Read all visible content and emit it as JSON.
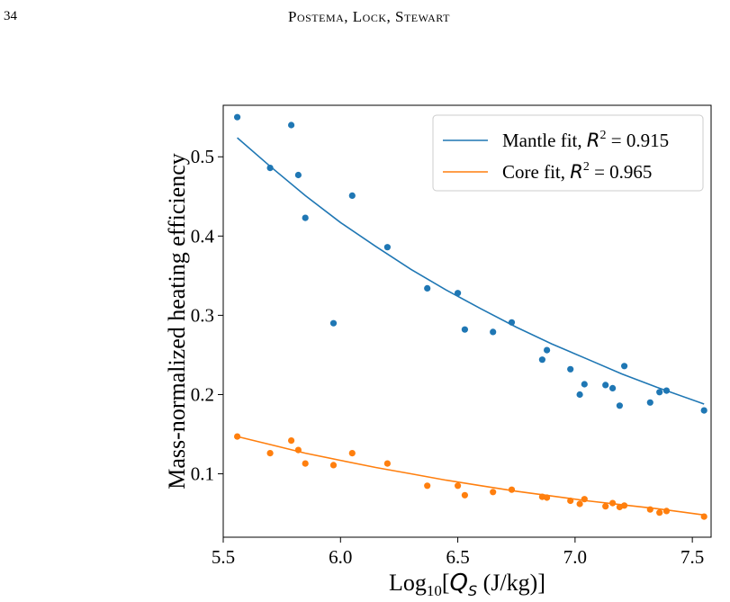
{
  "page": {
    "page_number": "34",
    "running_head": "Postema, Lock, Stewart"
  },
  "chart_data": {
    "type": "scatter",
    "xlabel": "Log10[QS (J/kg)]",
    "xlabel_parts": {
      "prefix": "Log",
      "sub": "10",
      "bracket_open": "[",
      "var": "Q",
      "var_sub": "S",
      "unit": " (J/kg)]"
    },
    "ylabel": "Mass-normalized heating efficiency",
    "xlim": [
      5.5,
      7.58
    ],
    "ylim": [
      0.02,
      0.565
    ],
    "xticks": [
      5.5,
      6.0,
      6.5,
      7.0,
      7.5
    ],
    "xtick_labels": [
      "5.5",
      "6.0",
      "6.5",
      "7.0",
      "7.5"
    ],
    "yticks": [
      0.1,
      0.2,
      0.3,
      0.4,
      0.5
    ],
    "ytick_labels": [
      "0.1",
      "0.2",
      "0.3",
      "0.4",
      "0.5"
    ],
    "legend_position": "top-right",
    "series": [
      {
        "name": "Mantle",
        "color": "#1f77b4",
        "x": [
          5.56,
          5.7,
          5.79,
          5.82,
          5.85,
          5.97,
          6.05,
          6.2,
          6.37,
          6.5,
          6.53,
          6.65,
          6.73,
          6.86,
          6.88,
          6.98,
          7.02,
          7.04,
          7.13,
          7.16,
          7.19,
          7.21,
          7.32,
          7.36,
          7.39,
          7.55
        ],
        "y": [
          0.55,
          0.486,
          0.54,
          0.477,
          0.423,
          0.29,
          0.451,
          0.386,
          0.334,
          0.328,
          0.282,
          0.279,
          0.291,
          0.244,
          0.256,
          0.232,
          0.2,
          0.213,
          0.212,
          0.208,
          0.186,
          0.236,
          0.19,
          0.203,
          0.205,
          0.18
        ]
      },
      {
        "name": "Core",
        "color": "#ff7f0e",
        "x": [
          5.56,
          5.7,
          5.79,
          5.82,
          5.85,
          5.97,
          6.05,
          6.2,
          6.37,
          6.5,
          6.53,
          6.65,
          6.73,
          6.86,
          6.88,
          6.98,
          7.02,
          7.04,
          7.13,
          7.16,
          7.19,
          7.21,
          7.32,
          7.36,
          7.39,
          7.55
        ],
        "y": [
          0.147,
          0.126,
          0.142,
          0.13,
          0.113,
          0.111,
          0.126,
          0.113,
          0.085,
          0.085,
          0.073,
          0.077,
          0.08,
          0.071,
          0.07,
          0.066,
          0.062,
          0.068,
          0.059,
          0.063,
          0.058,
          0.06,
          0.055,
          0.051,
          0.053,
          0.046
        ]
      }
    ],
    "fits": [
      {
        "name": "Mantle fit",
        "label_prefix": "Mantle fit, ",
        "r2": "0.915",
        "color": "#1f77b4",
        "x": [
          5.56,
          5.7,
          5.85,
          6.0,
          6.15,
          6.3,
          6.45,
          6.6,
          6.75,
          6.9,
          7.05,
          7.2,
          7.35,
          7.55
        ],
        "y": [
          0.524,
          0.488,
          0.451,
          0.417,
          0.387,
          0.358,
          0.332,
          0.308,
          0.285,
          0.264,
          0.245,
          0.226,
          0.209,
          0.188
        ]
      },
      {
        "name": "Core fit",
        "label_prefix": "Core fit, ",
        "r2": "0.965",
        "color": "#ff7f0e",
        "x": [
          5.56,
          5.7,
          5.85,
          6.0,
          6.15,
          6.3,
          6.45,
          6.6,
          6.75,
          6.9,
          7.05,
          7.2,
          7.35,
          7.55
        ],
        "y": [
          0.147,
          0.137,
          0.126,
          0.117,
          0.108,
          0.1,
          0.092,
          0.085,
          0.078,
          0.072,
          0.066,
          0.061,
          0.056,
          0.048
        ]
      }
    ]
  }
}
